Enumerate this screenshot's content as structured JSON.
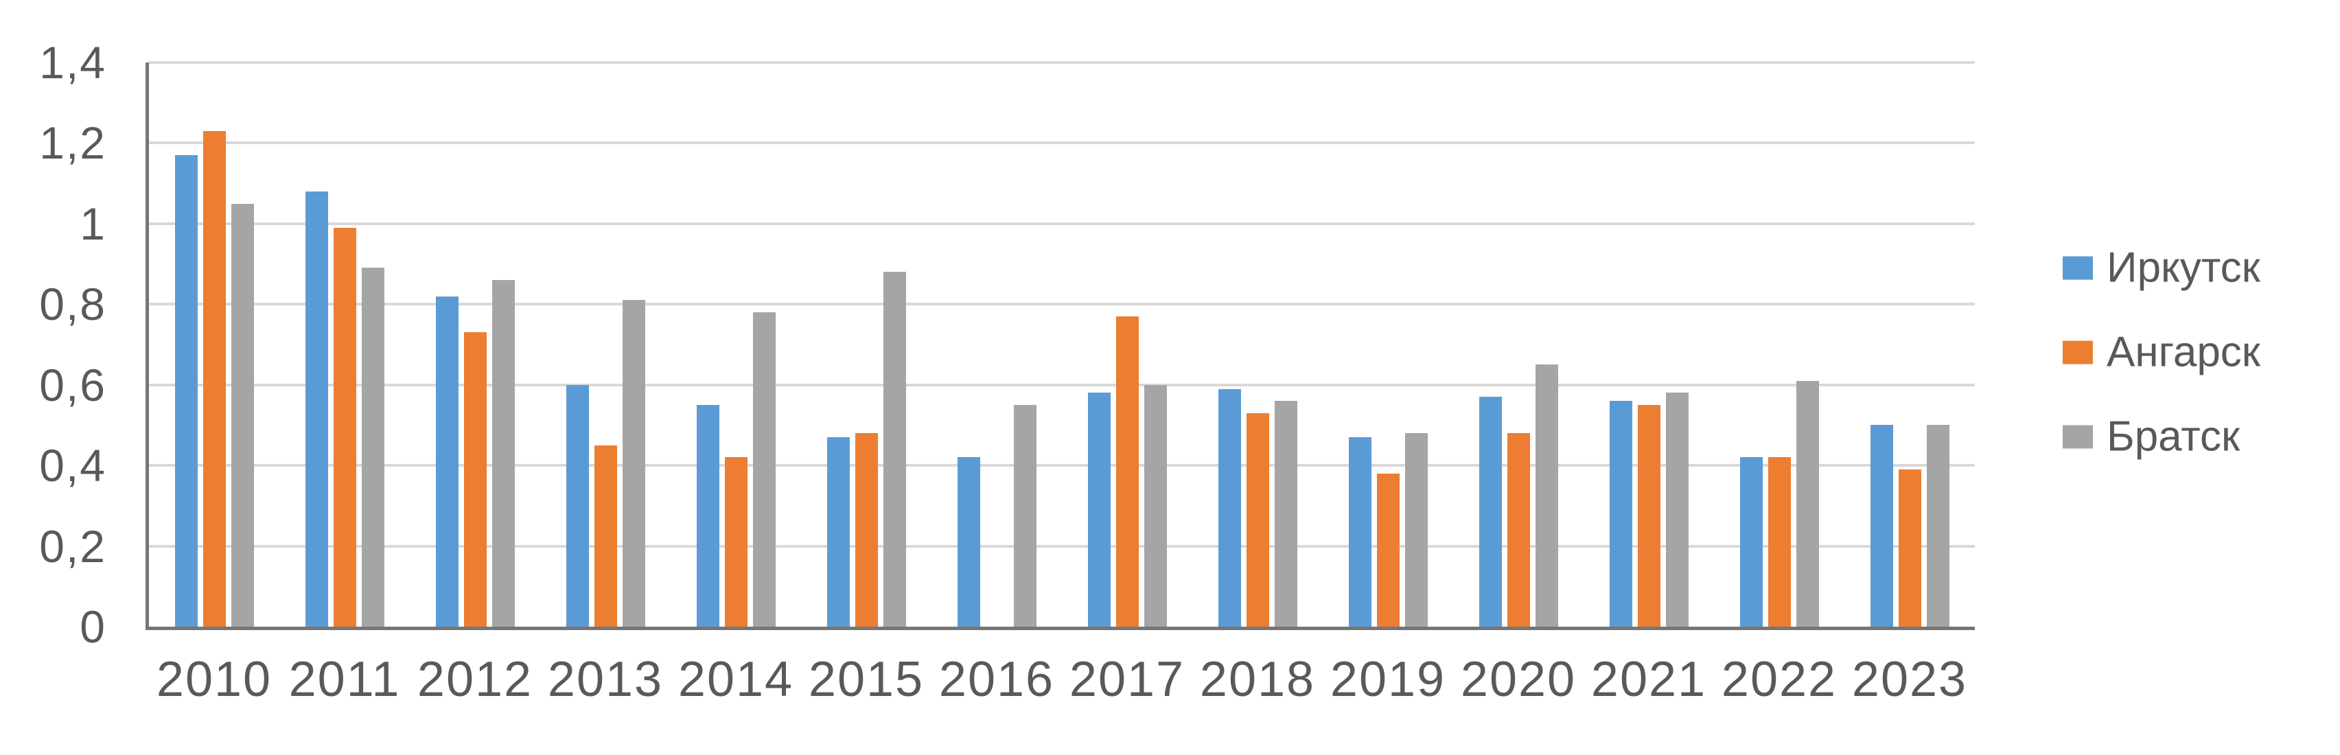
{
  "chart_data": {
    "type": "bar",
    "title": "",
    "xlabel": "",
    "ylabel": "",
    "categories": [
      "2010",
      "2011",
      "2012",
      "2013",
      "2014",
      "2015",
      "2016",
      "2017",
      "2018",
      "2019",
      "2020",
      "2021",
      "2022",
      "2023"
    ],
    "series": [
      {
        "name": "Иркутск",
        "color": "#5B9BD5",
        "values": [
          1.17,
          1.08,
          0.82,
          0.6,
          0.55,
          0.47,
          0.42,
          0.58,
          0.59,
          0.47,
          0.57,
          0.56,
          0.42,
          0.5
        ]
      },
      {
        "name": "Ангарск",
        "color": "#ED7D31",
        "values": [
          1.23,
          0.99,
          0.73,
          0.45,
          0.42,
          0.48,
          null,
          0.77,
          0.53,
          0.38,
          0.48,
          0.55,
          0.42,
          0.39
        ]
      },
      {
        "name": "Братск",
        "color": "#A5A5A5",
        "values": [
          1.05,
          0.89,
          0.86,
          0.81,
          0.78,
          0.88,
          0.55,
          0.6,
          0.56,
          0.48,
          0.65,
          0.58,
          0.61,
          0.5
        ]
      }
    ],
    "ylim": [
      0,
      1.4
    ],
    "y_tick_labels": [
      "0",
      "0,2",
      "0,4",
      "0,6",
      "0,8",
      "1",
      "1,2",
      "1,4"
    ],
    "y_tick_values": [
      0,
      0.2,
      0.4,
      0.6,
      0.8,
      1.0,
      1.2,
      1.4
    ],
    "decimal_separator": ",",
    "grid": true,
    "legend_position": "right"
  },
  "colors": {
    "background": "#FFFFFF",
    "gridline": "#D9D9D9",
    "axis_line": "#767676",
    "label_text": "#595959"
  }
}
